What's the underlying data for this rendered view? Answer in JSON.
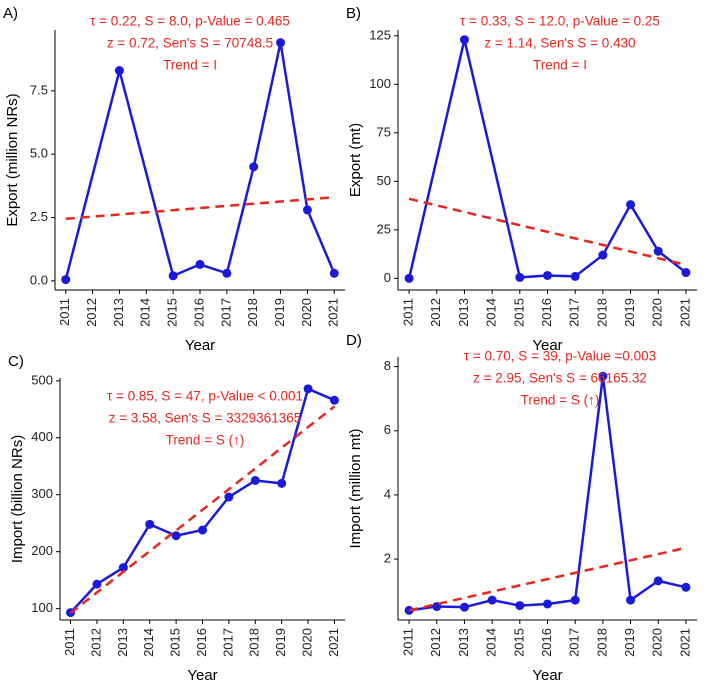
{
  "chart_data": [
    {
      "type": "line",
      "panel_label": "A)",
      "ylabel": "Export (million NRs)",
      "xlabel": "Year",
      "annotations": [
        "τ = 0.22, S = 8.0, p-Value = 0.465",
        "z = 0.72, Sen's S = 70748.5",
        "Trend = I"
      ],
      "xlim": [
        2010.6,
        2021.4
      ],
      "xticks": [
        2011,
        2012,
        2013,
        2014,
        2015,
        2016,
        2017,
        2018,
        2019,
        2020,
        2021
      ],
      "ylim": [
        -0.36,
        9.9
      ],
      "yticks": [
        {
          "value": 0,
          "label": "0.0"
        },
        {
          "value": 2.5,
          "label": "2.5"
        },
        {
          "value": 5,
          "label": "5.0"
        },
        {
          "value": 7.5,
          "label": "7.5"
        }
      ],
      "series": [
        {
          "color": "#1a1adb",
          "style": "solid",
          "x": [
            2011,
            2013,
            2015,
            2016,
            2017,
            2018,
            2019,
            2020,
            2021
          ],
          "values": [
            0.05,
            8.3,
            0.2,
            0.65,
            0.3,
            4.5,
            9.4,
            2.8,
            0.3
          ]
        },
        {
          "color": "#e8261f",
          "style": "dashed",
          "x": [
            2011,
            2021
          ],
          "values": [
            2.45,
            3.3
          ]
        }
      ]
    },
    {
      "type": "line",
      "panel_label": "B)",
      "ylabel": "Export (mt)",
      "xlabel": "Year",
      "annotations": [
        "τ = 0.33, S = 12.0, p-Value = 0.25",
        "z = 1.14, Sen's S = 0.430",
        "Trend = I"
      ],
      "xlim": [
        2010.6,
        2021.4
      ],
      "xticks": [
        2011,
        2012,
        2013,
        2014,
        2015,
        2016,
        2017,
        2018,
        2019,
        2020,
        2021
      ],
      "ylim": [
        -6,
        128
      ],
      "yticks": [
        0,
        25,
        50,
        75,
        100,
        125
      ],
      "series": [
        {
          "color": "#1a1adb",
          "style": "solid",
          "x": [
            2011,
            2013,
            2015,
            2016,
            2017,
            2018,
            2019,
            2020,
            2021
          ],
          "values": [
            0,
            123,
            0.5,
            1.5,
            1,
            12,
            38,
            14,
            3
          ]
        },
        {
          "color": "#e8261f",
          "style": "dashed",
          "x": [
            2011,
            2021
          ],
          "values": [
            41,
            7
          ]
        }
      ]
    },
    {
      "type": "line",
      "panel_label": "C)",
      "ylabel": "Import (billion NRs)",
      "xlabel": "Year",
      "annotations": [
        "τ = 0.85, S = 47, p-Value < 0.001",
        "z = 3.58, Sen's S = 3329361365",
        "Trend = S (↑)"
      ],
      "xlim": [
        2010.6,
        2021.4
      ],
      "xticks": [
        2011,
        2012,
        2013,
        2014,
        2015,
        2016,
        2017,
        2018,
        2019,
        2020,
        2021
      ],
      "ylim": [
        80,
        505
      ],
      "yticks": [
        100,
        200,
        300,
        400,
        500
      ],
      "series": [
        {
          "color": "#1a1adb",
          "style": "solid",
          "x": [
            2011,
            2012,
            2013,
            2014,
            2015,
            2016,
            2017,
            2018,
            2019,
            2020,
            2021
          ],
          "values": [
            93,
            143,
            172,
            248,
            228,
            238,
            296,
            325,
            320,
            486,
            466
          ]
        },
        {
          "color": "#e8261f",
          "style": "dashed",
          "x": [
            2011,
            2021
          ],
          "values": [
            92,
            455
          ]
        }
      ]
    },
    {
      "type": "line",
      "panel_label": "D)",
      "ylabel": "Import (million mt)",
      "xlabel": "Year",
      "annotations": [
        "τ = 0.70, S = 39, p-Value =0.003",
        "z = 2.95, Sen's S = 66165.32",
        "Trend = S (↑)"
      ],
      "xlim": [
        2010.6,
        2021.4
      ],
      "xticks": [
        2011,
        2012,
        2013,
        2014,
        2015,
        2016,
        2017,
        2018,
        2019,
        2020,
        2021
      ],
      "ylim": [
        0.1,
        8.3
      ],
      "yticks": [
        2,
        4,
        6,
        8
      ],
      "series": [
        {
          "color": "#1a1adb",
          "style": "solid",
          "x": [
            2011,
            2012,
            2013,
            2014,
            2015,
            2016,
            2017,
            2018,
            2019,
            2020,
            2021
          ],
          "values": [
            0.4,
            0.52,
            0.5,
            0.72,
            0.55,
            0.6,
            0.72,
            7.7,
            0.72,
            1.32,
            1.12
          ]
        },
        {
          "color": "#e8261f",
          "style": "dashed",
          "x": [
            2011,
            2021
          ],
          "values": [
            0.4,
            2.35
          ]
        }
      ]
    }
  ]
}
